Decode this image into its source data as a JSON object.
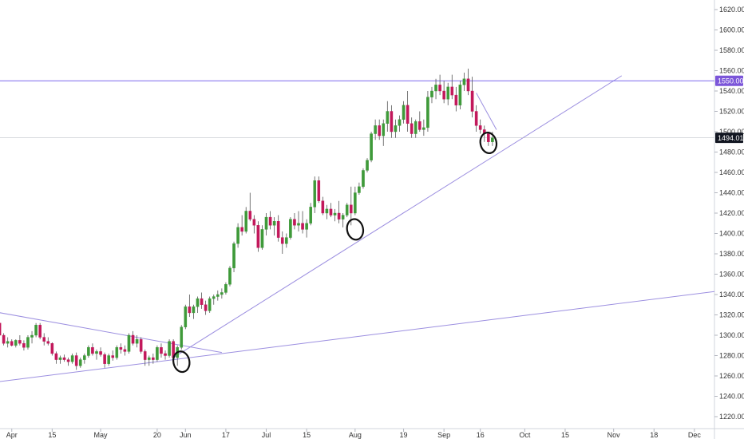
{
  "chart_data": {
    "type": "candlestick",
    "title": "",
    "xlabel": "",
    "ylabel": "",
    "ylim": [
      1220,
      1630
    ],
    "grid": false,
    "colors": {
      "up": "#26a69a",
      "up_fill": "#3f9a3a",
      "down": "#c2185b",
      "line": "#9c8fe0",
      "hline": "#7b68ee",
      "price_tag_bg": "#7b55d9",
      "last_tag_bg": "#131722",
      "circle": "#111111"
    },
    "y_ticks": [
      "1220.00",
      "1240.00",
      "1260.00",
      "1280.00",
      "1300.00",
      "1320.00",
      "1340.00",
      "1360.00",
      "1380.00",
      "1400.00",
      "1420.00",
      "1440.00",
      "1460.00",
      "1480.00",
      "1500.00",
      "1520.00",
      "1540.00",
      "1560.00",
      "1580.00",
      "1600.00",
      "1620.00"
    ],
    "x_ticks": [
      {
        "label": "Apr",
        "i": 4
      },
      {
        "label": "15",
        "i": 14
      },
      {
        "label": "May",
        "i": 26
      },
      {
        "label": "20",
        "i": 40
      },
      {
        "label": "Jun",
        "i": 47
      },
      {
        "label": "17",
        "i": 57
      },
      {
        "label": "Jul",
        "i": 67
      },
      {
        "label": "15",
        "i": 77
      },
      {
        "label": "Aug",
        "i": 89
      },
      {
        "label": "19",
        "i": 101
      },
      {
        "label": "Sep",
        "i": 111
      },
      {
        "label": "16",
        "i": 120
      },
      {
        "label": "Oct",
        "i": 131
      },
      {
        "label": "15",
        "i": 141
      },
      {
        "label": "Nov",
        "i": 153
      },
      {
        "label": "18",
        "i": 163
      },
      {
        "label": "Dec",
        "i": 173
      }
    ],
    "candles": [
      [
        1320,
        1322,
        1310,
        1312
      ],
      [
        1312,
        1314,
        1296,
        1300
      ],
      [
        1300,
        1302,
        1290,
        1292
      ],
      [
        1292,
        1298,
        1288,
        1294
      ],
      [
        1294,
        1296,
        1289,
        1290
      ],
      [
        1290,
        1296,
        1288,
        1295
      ],
      [
        1295,
        1300,
        1290,
        1292
      ],
      [
        1292,
        1295,
        1285,
        1288
      ],
      [
        1288,
        1300,
        1286,
        1298
      ],
      [
        1298,
        1304,
        1292,
        1300
      ],
      [
        1300,
        1312,
        1298,
        1310
      ],
      [
        1310,
        1312,
        1296,
        1298
      ],
      [
        1298,
        1302,
        1290,
        1294
      ],
      [
        1294,
        1298,
        1290,
        1292
      ],
      [
        1292,
        1293,
        1280,
        1282
      ],
      [
        1282,
        1284,
        1272,
        1276
      ],
      [
        1276,
        1280,
        1272,
        1278
      ],
      [
        1278,
        1281,
        1274,
        1276
      ],
      [
        1276,
        1278,
        1270,
        1274
      ],
      [
        1274,
        1282,
        1272,
        1280
      ],
      [
        1280,
        1283,
        1266,
        1270
      ],
      [
        1270,
        1278,
        1268,
        1276
      ],
      [
        1276,
        1282,
        1272,
        1280
      ],
      [
        1280,
        1290,
        1278,
        1288
      ],
      [
        1288,
        1292,
        1280,
        1282
      ],
      [
        1282,
        1286,
        1276,
        1284
      ],
      [
        1284,
        1288,
        1279,
        1281
      ],
      [
        1281,
        1283,
        1268,
        1272
      ],
      [
        1272,
        1282,
        1270,
        1280
      ],
      [
        1280,
        1285,
        1275,
        1278
      ],
      [
        1278,
        1290,
        1276,
        1288
      ],
      [
        1288,
        1292,
        1282,
        1286
      ],
      [
        1286,
        1290,
        1280,
        1284
      ],
      [
        1284,
        1302,
        1282,
        1300
      ],
      [
        1300,
        1304,
        1290,
        1292
      ],
      [
        1292,
        1300,
        1288,
        1296
      ],
      [
        1296,
        1298,
        1282,
        1284
      ],
      [
        1284,
        1286,
        1270,
        1276
      ],
      [
        1276,
        1280,
        1270,
        1278
      ],
      [
        1278,
        1282,
        1272,
        1276
      ],
      [
        1276,
        1290,
        1274,
        1288
      ],
      [
        1288,
        1292,
        1278,
        1282
      ],
      [
        1282,
        1285,
        1276,
        1280
      ],
      [
        1280,
        1296,
        1278,
        1294
      ],
      [
        1294,
        1296,
        1276,
        1278
      ],
      [
        1278,
        1290,
        1270,
        1288
      ],
      [
        1288,
        1310,
        1286,
        1308
      ],
      [
        1308,
        1330,
        1306,
        1328
      ],
      [
        1328,
        1340,
        1318,
        1322
      ],
      [
        1322,
        1330,
        1316,
        1328
      ],
      [
        1328,
        1338,
        1322,
        1336
      ],
      [
        1336,
        1342,
        1326,
        1330
      ],
      [
        1330,
        1334,
        1320,
        1324
      ],
      [
        1324,
        1338,
        1322,
        1336
      ],
      [
        1336,
        1340,
        1330,
        1338
      ],
      [
        1338,
        1344,
        1334,
        1340
      ],
      [
        1340,
        1346,
        1336,
        1342
      ],
      [
        1342,
        1352,
        1340,
        1350
      ],
      [
        1350,
        1368,
        1348,
        1366
      ],
      [
        1366,
        1392,
        1362,
        1390
      ],
      [
        1390,
        1410,
        1386,
        1406
      ],
      [
        1406,
        1418,
        1398,
        1402
      ],
      [
        1402,
        1426,
        1400,
        1422
      ],
      [
        1422,
        1440,
        1412,
        1414
      ],
      [
        1414,
        1418,
        1400,
        1408
      ],
      [
        1408,
        1412,
        1382,
        1386
      ],
      [
        1386,
        1408,
        1384,
        1404
      ],
      [
        1404,
        1420,
        1398,
        1416
      ],
      [
        1416,
        1422,
        1404,
        1408
      ],
      [
        1408,
        1416,
        1398,
        1412
      ],
      [
        1412,
        1418,
        1392,
        1396
      ],
      [
        1396,
        1402,
        1380,
        1390
      ],
      [
        1390,
        1400,
        1386,
        1396
      ],
      [
        1396,
        1416,
        1394,
        1414
      ],
      [
        1414,
        1420,
        1404,
        1408
      ],
      [
        1408,
        1422,
        1402,
        1410
      ],
      [
        1410,
        1422,
        1400,
        1404
      ],
      [
        1404,
        1414,
        1396,
        1410
      ],
      [
        1410,
        1430,
        1408,
        1426
      ],
      [
        1426,
        1456,
        1420,
        1452
      ],
      [
        1452,
        1456,
        1430,
        1432
      ],
      [
        1432,
        1436,
        1418,
        1420
      ],
      [
        1420,
        1428,
        1414,
        1424
      ],
      [
        1424,
        1430,
        1416,
        1418
      ],
      [
        1418,
        1424,
        1412,
        1420
      ],
      [
        1420,
        1432,
        1410,
        1414
      ],
      [
        1414,
        1420,
        1406,
        1418
      ],
      [
        1418,
        1430,
        1416,
        1428
      ],
      [
        1428,
        1446,
        1408,
        1420
      ],
      [
        1420,
        1446,
        1418,
        1440
      ],
      [
        1440,
        1450,
        1438,
        1446
      ],
      [
        1446,
        1464,
        1444,
        1462
      ],
      [
        1462,
        1474,
        1460,
        1472
      ],
      [
        1472,
        1500,
        1470,
        1498
      ],
      [
        1498,
        1512,
        1492,
        1506
      ],
      [
        1506,
        1512,
        1492,
        1496
      ],
      [
        1496,
        1512,
        1486,
        1508
      ],
      [
        1508,
        1530,
        1500,
        1520
      ],
      [
        1520,
        1526,
        1494,
        1500
      ],
      [
        1500,
        1512,
        1494,
        1506
      ],
      [
        1506,
        1516,
        1500,
        1512
      ],
      [
        1512,
        1530,
        1508,
        1526
      ],
      [
        1526,
        1540,
        1500,
        1508
      ],
      [
        1508,
        1514,
        1494,
        1498
      ],
      [
        1498,
        1512,
        1494,
        1510
      ],
      [
        1510,
        1520,
        1500,
        1502
      ],
      [
        1502,
        1512,
        1496,
        1504
      ],
      [
        1504,
        1540,
        1500,
        1534
      ],
      [
        1534,
        1544,
        1528,
        1540
      ],
      [
        1540,
        1552,
        1532,
        1546
      ],
      [
        1546,
        1556,
        1536,
        1540
      ],
      [
        1540,
        1550,
        1528,
        1532
      ],
      [
        1532,
        1548,
        1526,
        1544
      ],
      [
        1544,
        1556,
        1532,
        1536
      ],
      [
        1536,
        1544,
        1520,
        1526
      ],
      [
        1526,
        1550,
        1522,
        1546
      ],
      [
        1546,
        1558,
        1540,
        1552
      ],
      [
        1552,
        1562,
        1536,
        1540
      ],
      [
        1540,
        1554,
        1514,
        1520
      ],
      [
        1520,
        1526,
        1500,
        1506
      ],
      [
        1506,
        1512,
        1498,
        1502
      ],
      [
        1502,
        1506,
        1490,
        1498
      ],
      [
        1498,
        1500,
        1486,
        1490
      ],
      [
        1490,
        1500,
        1486,
        1494
      ]
    ],
    "trendlines": [
      {
        "from": {
          "i": -10,
          "y": 1330
        },
        "to": {
          "i": 56,
          "y": 1283
        }
      },
      {
        "from": {
          "i": -10,
          "y": 1249
        },
        "to": {
          "i": 192,
          "y": 1350
        }
      },
      {
        "from": {
          "i": 44,
          "y": 1278
        },
        "to": {
          "i": 155,
          "y": 1555
        }
      },
      {
        "from": {
          "i": 119,
          "y": 1538
        },
        "to": {
          "i": 124,
          "y": 1502
        }
      }
    ],
    "horizontal_lines": [
      {
        "y": 1550,
        "label": "1550.00"
      },
      {
        "y": 1494.01,
        "label": "1494.01"
      }
    ],
    "circles": [
      {
        "i": 46,
        "y": 1274
      },
      {
        "i": 89,
        "y": 1404
      },
      {
        "i": 122,
        "y": 1489
      }
    ]
  }
}
